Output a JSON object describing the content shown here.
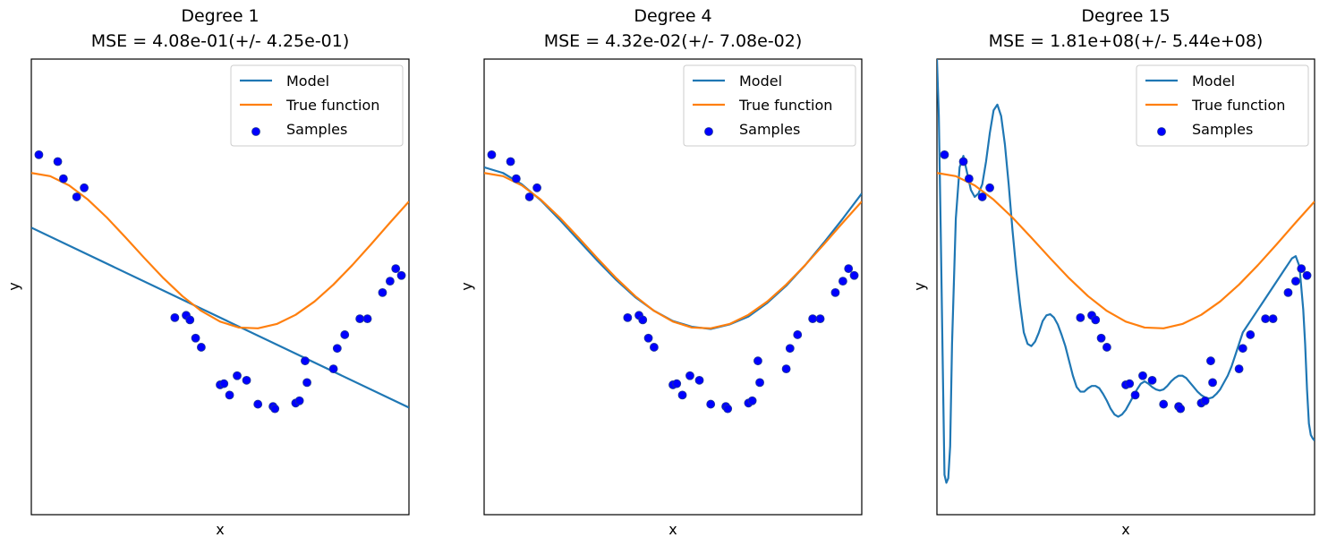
{
  "colors": {
    "model": "#1f77b4",
    "true_function": "#ff7f0e",
    "samples": "#0000ff"
  },
  "chart_data": [
    {
      "type": "line",
      "title_line1": "Degree 1",
      "title_line2": "MSE = 4.08e-01(+/- 4.25e-01)",
      "xlabel": "x",
      "ylabel": "y",
      "xlim": [
        0,
        1
      ],
      "ylim": [
        -2,
        2
      ],
      "legend": {
        "placement": "top-right",
        "entries": [
          "Model",
          "True function",
          "Samples"
        ]
      },
      "samples": {
        "x": [
          0.02,
          0.07,
          0.085,
          0.12,
          0.14,
          0.38,
          0.41,
          0.42,
          0.435,
          0.45,
          0.5,
          0.51,
          0.525,
          0.545,
          0.57,
          0.6,
          0.64,
          0.645,
          0.7,
          0.71,
          0.725,
          0.73,
          0.8,
          0.81,
          0.83,
          0.87,
          0.89,
          0.93,
          0.95,
          0.965,
          0.98
        ],
        "y": [
          1.16,
          1.1,
          0.95,
          0.79,
          0.87,
          -0.27,
          -0.25,
          -0.29,
          -0.45,
          -0.53,
          -0.86,
          -0.85,
          -0.95,
          -0.78,
          -0.82,
          -1.03,
          -1.05,
          -1.07,
          -1.02,
          -1.0,
          -0.65,
          -0.84,
          -0.72,
          -0.54,
          -0.42,
          -0.28,
          -0.28,
          -0.05,
          0.05,
          0.16,
          0.1
        ]
      },
      "series": [
        {
          "name": "Model",
          "x": [
            0,
            1
          ],
          "y": [
            0.52,
            -1.06
          ]
        },
        {
          "name": "True function",
          "x": [
            0,
            0.05,
            0.1,
            0.15,
            0.2,
            0.25,
            0.3,
            0.35,
            0.4,
            0.45,
            0.5,
            0.55,
            0.6,
            0.65,
            0.7,
            0.75,
            0.8,
            0.85,
            0.9,
            0.95,
            1.0
          ],
          "y": [
            1.0,
            0.972,
            0.891,
            0.766,
            0.609,
            0.432,
            0.251,
            0.076,
            -0.081,
            -0.211,
            -0.305,
            -0.357,
            -0.364,
            -0.326,
            -0.245,
            -0.128,
            0.02,
            0.191,
            0.375,
            0.565,
            0.75
          ]
        }
      ]
    },
    {
      "type": "line",
      "title_line1": "Degree 4",
      "title_line2": "MSE = 4.32e-02(+/- 7.08e-02)",
      "xlabel": "x",
      "ylabel": "y",
      "xlim": [
        0,
        1
      ],
      "ylim": [
        -2,
        2
      ],
      "legend": {
        "placement": "top-right",
        "entries": [
          "Model",
          "True function",
          "Samples"
        ]
      },
      "samples": {
        "x": [
          0.02,
          0.07,
          0.085,
          0.12,
          0.14,
          0.38,
          0.41,
          0.42,
          0.435,
          0.45,
          0.5,
          0.51,
          0.525,
          0.545,
          0.57,
          0.6,
          0.64,
          0.645,
          0.7,
          0.71,
          0.725,
          0.73,
          0.8,
          0.81,
          0.83,
          0.87,
          0.89,
          0.93,
          0.95,
          0.965,
          0.98
        ],
        "y": [
          1.16,
          1.1,
          0.95,
          0.79,
          0.87,
          -0.27,
          -0.25,
          -0.29,
          -0.45,
          -0.53,
          -0.86,
          -0.85,
          -0.95,
          -0.78,
          -0.82,
          -1.03,
          -1.05,
          -1.07,
          -1.02,
          -1.0,
          -0.65,
          -0.84,
          -0.72,
          -0.54,
          -0.42,
          -0.28,
          -0.28,
          -0.05,
          0.05,
          0.16,
          0.1
        ]
      },
      "series": [
        {
          "name": "Model",
          "x": [
            0,
            0.05,
            0.1,
            0.15,
            0.2,
            0.25,
            0.3,
            0.35,
            0.4,
            0.45,
            0.5,
            0.55,
            0.6,
            0.65,
            0.7,
            0.75,
            0.8,
            0.85,
            0.9,
            0.95,
            1.0
          ],
          "y": [
            1.05,
            1.0,
            0.9,
            0.76,
            0.59,
            0.41,
            0.23,
            0.06,
            -0.09,
            -0.21,
            -0.3,
            -0.35,
            -0.37,
            -0.33,
            -0.26,
            -0.14,
            0.01,
            0.19,
            0.39,
            0.6,
            0.82
          ]
        },
        {
          "name": "True function",
          "x": [
            0,
            0.05,
            0.1,
            0.15,
            0.2,
            0.25,
            0.3,
            0.35,
            0.4,
            0.45,
            0.5,
            0.55,
            0.6,
            0.65,
            0.7,
            0.75,
            0.8,
            0.85,
            0.9,
            0.95,
            1.0
          ],
          "y": [
            1.0,
            0.972,
            0.891,
            0.766,
            0.609,
            0.432,
            0.251,
            0.076,
            -0.081,
            -0.211,
            -0.305,
            -0.357,
            -0.364,
            -0.326,
            -0.245,
            -0.128,
            0.02,
            0.191,
            0.375,
            0.565,
            0.75
          ]
        }
      ]
    },
    {
      "type": "line",
      "title_line1": "Degree 15",
      "title_line2": "MSE = 1.81e+08(+/- 5.44e+08)",
      "xlabel": "x",
      "ylabel": "y",
      "xlim": [
        0,
        1
      ],
      "ylim": [
        -2,
        2
      ],
      "legend": {
        "placement": "top-right",
        "entries": [
          "Model",
          "True function",
          "Samples"
        ]
      },
      "samples": {
        "x": [
          0.02,
          0.07,
          0.085,
          0.12,
          0.14,
          0.38,
          0.41,
          0.42,
          0.435,
          0.45,
          0.5,
          0.51,
          0.525,
          0.545,
          0.57,
          0.6,
          0.64,
          0.645,
          0.7,
          0.71,
          0.725,
          0.73,
          0.8,
          0.81,
          0.83,
          0.87,
          0.89,
          0.93,
          0.95,
          0.965,
          0.98
        ],
        "y": [
          1.16,
          1.1,
          0.95,
          0.79,
          0.87,
          -0.27,
          -0.25,
          -0.29,
          -0.45,
          -0.53,
          -0.86,
          -0.85,
          -0.95,
          -0.78,
          -0.82,
          -1.03,
          -1.05,
          -1.07,
          -1.02,
          -1.0,
          -0.65,
          -0.84,
          -0.72,
          -0.54,
          -0.42,
          -0.28,
          -0.28,
          -0.05,
          0.05,
          0.16,
          0.1
        ]
      },
      "series": [
        {
          "name": "Model",
          "x": [
            0.0,
            0.005,
            0.01,
            0.015,
            0.02,
            0.025,
            0.03,
            0.035,
            0.04,
            0.05,
            0.06,
            0.07,
            0.08,
            0.09,
            0.1,
            0.11,
            0.12,
            0.13,
            0.14,
            0.15,
            0.16,
            0.17,
            0.18,
            0.19,
            0.2,
            0.21,
            0.22,
            0.23,
            0.24,
            0.25,
            0.26,
            0.27,
            0.28,
            0.29,
            0.3,
            0.31,
            0.32,
            0.33,
            0.34,
            0.35,
            0.36,
            0.37,
            0.38,
            0.39,
            0.4,
            0.41,
            0.42,
            0.43,
            0.44,
            0.45,
            0.46,
            0.47,
            0.48,
            0.49,
            0.5,
            0.51,
            0.52,
            0.53,
            0.54,
            0.55,
            0.56,
            0.57,
            0.58,
            0.59,
            0.6,
            0.61,
            0.62,
            0.63,
            0.64,
            0.65,
            0.66,
            0.67,
            0.68,
            0.69,
            0.7,
            0.71,
            0.72,
            0.73,
            0.74,
            0.75,
            0.76,
            0.77,
            0.78,
            0.79,
            0.8,
            0.81,
            0.82,
            0.83,
            0.84,
            0.85,
            0.86,
            0.87,
            0.88,
            0.89,
            0.9,
            0.91,
            0.92,
            0.93,
            0.94,
            0.95,
            0.96,
            0.97,
            0.975,
            0.98,
            0.985,
            0.99,
            0.995,
            1.0
          ],
          "y": [
            2.0,
            1.5,
            0.5,
            -0.6,
            -1.65,
            -1.72,
            -1.68,
            -1.4,
            -0.5,
            0.6,
            1.05,
            1.15,
            1.0,
            0.85,
            0.79,
            0.82,
            0.9,
            1.1,
            1.35,
            1.55,
            1.6,
            1.5,
            1.25,
            0.9,
            0.5,
            0.15,
            -0.15,
            -0.4,
            -0.5,
            -0.52,
            -0.48,
            -0.4,
            -0.3,
            -0.25,
            -0.24,
            -0.27,
            -0.33,
            -0.42,
            -0.52,
            -0.65,
            -0.78,
            -0.88,
            -0.92,
            -0.92,
            -0.89,
            -0.87,
            -0.87,
            -0.89,
            -0.94,
            -1.0,
            -1.07,
            -1.12,
            -1.14,
            -1.12,
            -1.08,
            -1.02,
            -0.96,
            -0.9,
            -0.85,
            -0.83,
            -0.85,
            -0.88,
            -0.9,
            -0.91,
            -0.9,
            -0.87,
            -0.83,
            -0.8,
            -0.78,
            -0.78,
            -0.8,
            -0.84,
            -0.88,
            -0.92,
            -0.95,
            -0.97,
            -0.98,
            -0.97,
            -0.94,
            -0.9,
            -0.84,
            -0.78,
            -0.7,
            -0.6,
            -0.5,
            -0.4,
            -0.35,
            -0.3,
            -0.25,
            -0.2,
            -0.15,
            -0.1,
            -0.05,
            0.0,
            0.05,
            0.1,
            0.15,
            0.2,
            0.25,
            0.27,
            0.18,
            -0.2,
            -0.5,
            -0.9,
            -1.2,
            -1.3,
            -1.33,
            -1.35
          ]
        },
        {
          "name": "True function",
          "x": [
            0,
            0.05,
            0.1,
            0.15,
            0.2,
            0.25,
            0.3,
            0.35,
            0.4,
            0.45,
            0.5,
            0.55,
            0.6,
            0.65,
            0.7,
            0.75,
            0.8,
            0.85,
            0.9,
            0.95,
            1.0
          ],
          "y": [
            1.0,
            0.972,
            0.891,
            0.766,
            0.609,
            0.432,
            0.251,
            0.076,
            -0.081,
            -0.211,
            -0.305,
            -0.357,
            -0.364,
            -0.326,
            -0.245,
            -0.128,
            0.02,
            0.191,
            0.375,
            0.565,
            0.75
          ]
        }
      ]
    }
  ]
}
